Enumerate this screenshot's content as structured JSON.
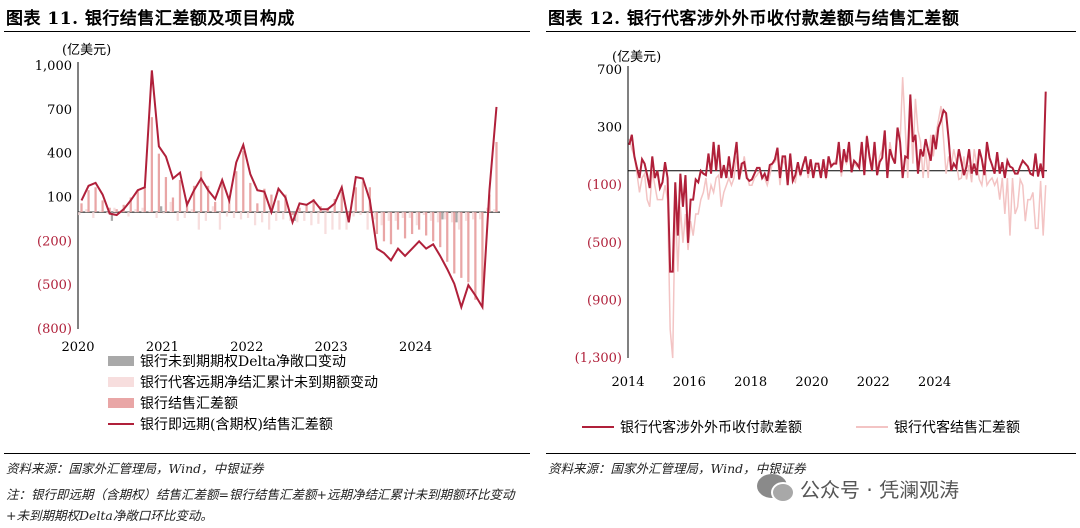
{
  "colors": {
    "dark_red": "#b0203a",
    "light_pink": "#f3c4c4",
    "grey": "#a9a9a9",
    "light_grey_pink": "#f7dede",
    "pink_bar": "#e9a6a6"
  },
  "left": {
    "title": "图表 11. 银行结售汇差额及项目构成",
    "unit": "(亿美元)",
    "source": "资料来源：国家外汇管理局，Wind，中银证券",
    "note": "注：银行即远期（含期权）结售汇差额=银行结售汇差额+远期净结汇累计未到期额环比变动+未到期期权Delta净敞口环比变动。",
    "legend": [
      "银行未到期期权Delta净敞口变动",
      "银行代客远期净结汇累计未到期额变动",
      "银行结售汇差额",
      "银行即远期(含期权)结售汇差额"
    ]
  },
  "right": {
    "title": "图表 12. 银行代客涉外外币收付款差额与结售汇差额",
    "unit": "(亿美元)",
    "source": "资料来源：国家外汇管理局，Wind，中银证券",
    "legend": [
      "银行代客涉外外币收付款差额",
      "银行代客结售汇差额"
    ]
  },
  "watermark": "公众号 · 凭澜观涛",
  "chart_data": [
    {
      "type": "bar",
      "title": "图表 11. 银行结售汇差额及项目构成",
      "ylabel": "(亿美元)",
      "ylim": [
        -800,
        1000
      ],
      "yticks": [
        1000,
        700,
        400,
        100,
        -200,
        -500,
        -800
      ],
      "ytick_labels": [
        "1,000",
        "700",
        "400",
        "100",
        "(200)",
        "(500)",
        "(800)"
      ],
      "x_start": "2020-01",
      "xtick_labels": [
        "2020",
        "2021",
        "2022",
        "2023",
        "2024"
      ],
      "series": [
        {
          "name": "银行结售汇差额",
          "type": "bar",
          "values": [
            60,
            150,
            170,
            80,
            30,
            20,
            50,
            100,
            150,
            170,
            650,
            400,
            240,
            100,
            220,
            80,
            180,
            280,
            180,
            70,
            200,
            100,
            280,
            420,
            200,
            60,
            160,
            120,
            80,
            120,
            -20,
            30,
            50,
            90,
            40,
            30,
            90,
            140,
            -50,
            170,
            210,
            170,
            -150,
            -200,
            -220,
            -120,
            -180,
            -150,
            -120,
            -160,
            -200,
            -240,
            -340,
            -420,
            -450,
            -480,
            -600,
            -630,
            120,
            480
          ]
        },
        {
          "name": "银行代客远期净结汇累计未到期额变动",
          "type": "bar",
          "values": [
            -20,
            20,
            -40,
            10,
            -10,
            30,
            10,
            -30,
            20,
            30,
            10,
            -40,
            -10,
            70,
            -60,
            -40,
            20,
            -120,
            -60,
            40,
            -120,
            -30,
            -40,
            -50,
            -40,
            -90,
            -70,
            -120,
            -60,
            -50,
            -60,
            -70,
            -60,
            -90,
            -80,
            -150,
            -120,
            -120,
            -120,
            -30,
            -20,
            -120,
            -50,
            -90,
            -60,
            -60,
            -40,
            -40,
            -90,
            -20,
            -60,
            -70,
            -50,
            -70,
            -120,
            -60,
            -50,
            -50,
            30,
            20
          ]
        },
        {
          "name": "银行未到期期权Delta净敞口变动",
          "type": "bar",
          "values": [
            0,
            0,
            0,
            0,
            -60,
            0,
            0,
            0,
            0,
            0,
            0,
            40,
            0,
            0,
            0,
            0,
            0,
            0,
            0,
            0,
            0,
            0,
            0,
            0,
            0,
            0,
            0,
            0,
            0,
            0,
            -60,
            0,
            0,
            0,
            0,
            0,
            0,
            0,
            0,
            0,
            0,
            0,
            0,
            0,
            0,
            0,
            0,
            0,
            0,
            0,
            0,
            -50,
            0,
            -70,
            0,
            0,
            0,
            0,
            0,
            0
          ]
        },
        {
          "name": "银行即远期(含期权)结售汇差额",
          "type": "line",
          "values": [
            80,
            180,
            200,
            120,
            -10,
            -20,
            20,
            80,
            150,
            170,
            970,
            450,
            380,
            230,
            270,
            50,
            150,
            230,
            150,
            90,
            220,
            80,
            340,
            460,
            260,
            150,
            140,
            0,
            160,
            100,
            -70,
            60,
            50,
            80,
            20,
            20,
            60,
            170,
            -70,
            240,
            230,
            80,
            -250,
            -280,
            -330,
            -250,
            -300,
            -250,
            -200,
            -250,
            -220,
            -300,
            -390,
            -490,
            -650,
            -500,
            -570,
            -650,
            150,
            720
          ]
        }
      ]
    },
    {
      "type": "line",
      "title": "图表 12. 银行代客涉外外币收付款差额与结售汇差额",
      "ylabel": "(亿美元)",
      "ylim": [
        -1300,
        700
      ],
      "yticks": [
        700,
        300,
        -100,
        -500,
        -900,
        -1300
      ],
      "ytick_labels": [
        "700",
        "300",
        "(100)",
        "(500)",
        "(900)",
        "(1,300)"
      ],
      "x_start": "2014-01",
      "xtick_labels": [
        "2014",
        "2016",
        "2018",
        "2020",
        "2022",
        "2024"
      ],
      "series": [
        {
          "name": "银行代客涉外外币收付款差额",
          "values": [
            180,
            250,
            100,
            20,
            -50,
            80,
            50,
            -30,
            -120,
            100,
            -50,
            0,
            -120,
            -80,
            60,
            -50,
            -700,
            -700,
            -80,
            -450,
            -20,
            -250,
            -30,
            -500,
            -200,
            -200,
            -60,
            -80,
            0,
            -20,
            -30,
            120,
            -20,
            200,
            0,
            180,
            -50,
            40,
            -50,
            100,
            -50,
            70,
            200,
            -60,
            50,
            60,
            -50,
            -70,
            -60,
            -20,
            20,
            20,
            -50,
            -20,
            -70,
            40,
            50,
            80,
            160,
            -50,
            100,
            100,
            -100,
            120,
            -70,
            -30,
            60,
            -30,
            40,
            100,
            -20,
            80,
            -50,
            50,
            50,
            -50,
            80,
            -50,
            100,
            30,
            50,
            50,
            200,
            -10,
            150,
            60,
            200,
            -10,
            70,
            50,
            20,
            200,
            -30,
            240,
            100,
            0,
            200,
            -30,
            60,
            90,
            280,
            -50,
            150,
            90,
            50,
            300,
            200,
            -50,
            100,
            90,
            530,
            200,
            250,
            -20,
            150,
            100,
            220,
            140,
            70,
            250,
            150,
            300,
            350,
            420,
            400,
            220,
            0,
            50,
            20,
            150,
            60,
            -30,
            30,
            150,
            -20,
            50,
            -30,
            150,
            80,
            -30,
            200,
            90,
            40,
            -20,
            130,
            -20,
            60,
            -50,
            70,
            30,
            20,
            -20,
            -20,
            30,
            70,
            50,
            30,
            -20,
            -30,
            120,
            -40,
            50,
            -50,
            550
          ]
        },
        {
          "name": "银行代客结售汇差额",
          "values": [
            220,
            150,
            100,
            -20,
            -150,
            -50,
            -20,
            -200,
            -250,
            0,
            -100,
            -200,
            -200,
            -200,
            -100,
            -200,
            -1100,
            -1300,
            -200,
            -700,
            -250,
            -500,
            -300,
            -550,
            -350,
            -450,
            -300,
            -300,
            -200,
            -150,
            -50,
            -200,
            -100,
            -150,
            -50,
            -30,
            -250,
            -150,
            -100,
            -50,
            -100,
            -50,
            100,
            -50,
            0,
            100,
            -20,
            -100,
            -100,
            -50,
            -30,
            0,
            -50,
            -50,
            -100,
            -30,
            50,
            60,
            100,
            -100,
            80,
            40,
            -60,
            60,
            -60,
            -80,
            30,
            -40,
            50,
            80,
            -50,
            50,
            -50,
            30,
            30,
            -40,
            50,
            -60,
            70,
            40,
            50,
            80,
            150,
            -40,
            100,
            50,
            100,
            40,
            50,
            30,
            60,
            180,
            -20,
            250,
            120,
            40,
            150,
            -30,
            100,
            150,
            280,
            -20,
            200,
            90,
            80,
            300,
            200,
            650,
            300,
            -50,
            450,
            50,
            500,
            280,
            200,
            -50,
            150,
            -50,
            250,
            100,
            250,
            350,
            450,
            220,
            -20,
            100,
            30,
            150,
            60,
            -60,
            -50,
            100,
            -60,
            40,
            -80,
            150,
            40,
            -60,
            -100,
            50,
            -100,
            -70,
            -50,
            -100,
            -60,
            -200,
            -50,
            -300,
            -50,
            -450,
            -50,
            -300,
            -250,
            -60,
            -100,
            -350,
            -200,
            -200,
            -150,
            -400,
            -400,
            -70,
            -450,
            -100
          ]
        }
      ]
    }
  ]
}
